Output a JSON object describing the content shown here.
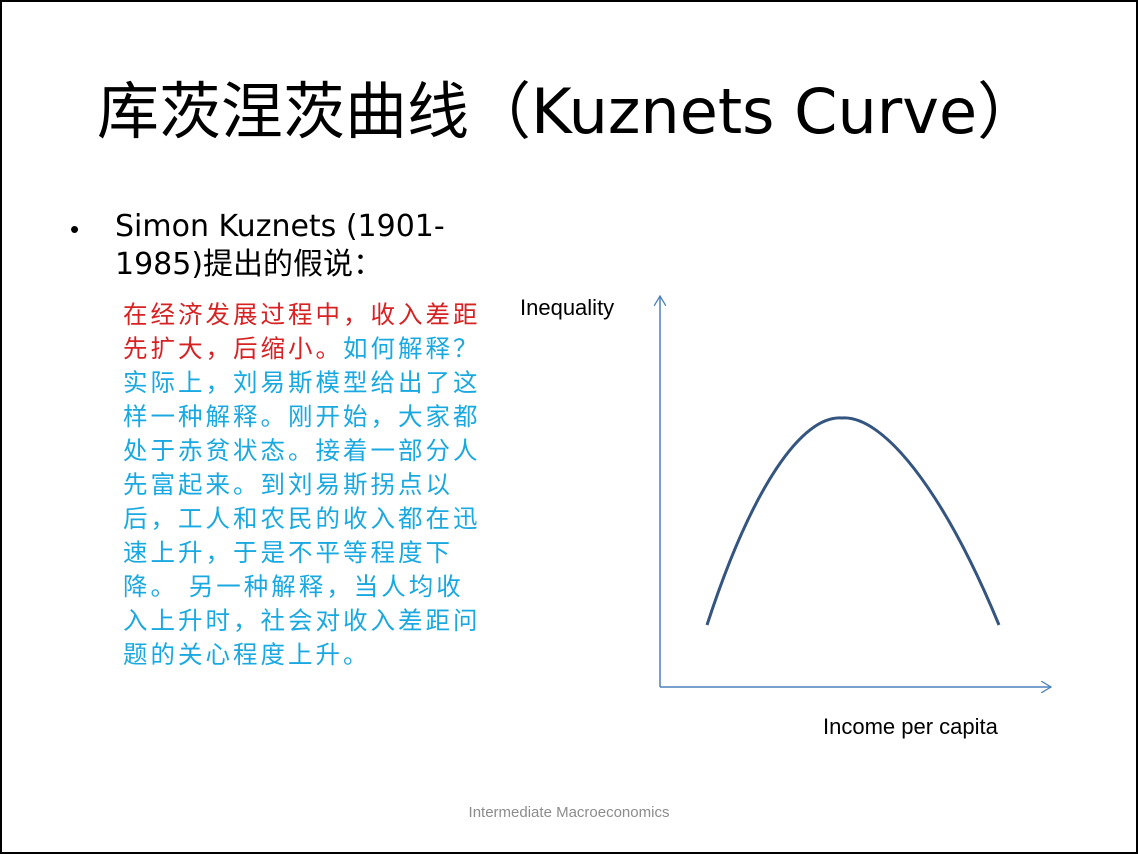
{
  "slide": {
    "title_cn": "库茨涅茨曲线（",
    "title_en": "Kuznets Curve",
    "title_close": "）",
    "bullet_symbol": "•",
    "bullet_text": "Simon Kuznets (1901-1985)提出的假说：",
    "explanation_red": "在经济发展过程中，收入差距先扩大，后缩小。",
    "explanation_blue": "如何解释？ 实际上，刘易斯模型给出了这样一种解释。刚开始，大家都处于赤贫状态。接着一部分人先富起来。到刘易斯拐点以后，工人和农民的收入都在迅速上升，于是不平等程度下降。 另一种解释，当人均收入上升时，社会对收入差距问题的关心程度上升。",
    "footer": "Intermediate Macroeconomics",
    "colors": {
      "red_text": "#d62222",
      "blue_text": "#19a9e0",
      "axis": "#4f81bd",
      "curve": "#34557f"
    }
  },
  "chart_data": {
    "type": "line",
    "title": "",
    "xlabel": "Income per capita",
    "ylabel": "Inequality",
    "shape": "inverted-U",
    "grid": false,
    "axis_ticks": false
  }
}
